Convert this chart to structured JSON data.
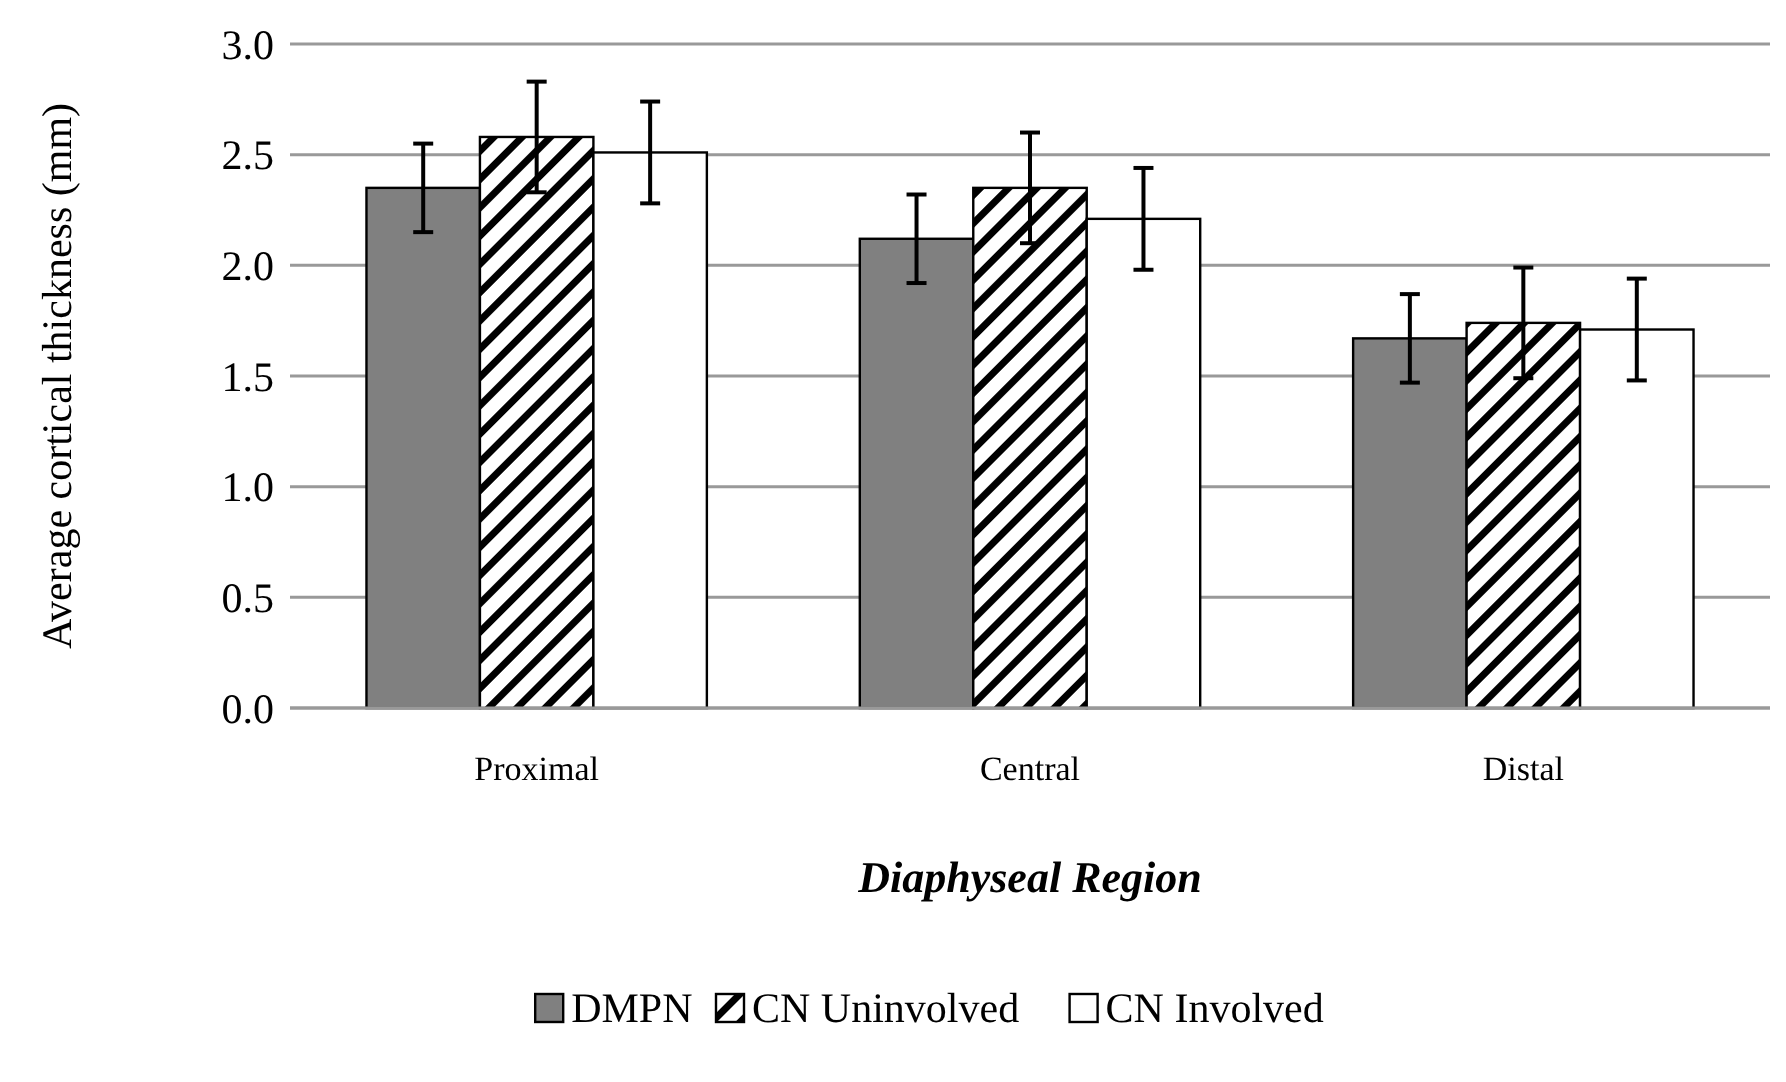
{
  "chart_data": {
    "type": "bar",
    "xlabel": "Diaphyseal Region",
    "ylabel": "Average cortical thickness (mm)",
    "categories": [
      "Proximal",
      "Central",
      "Distal"
    ],
    "series": [
      {
        "name": "DMPN",
        "color": "#808080",
        "values": [
          2.35,
          2.12,
          1.67
        ],
        "errors": [
          0.2,
          0.2,
          0.2
        ]
      },
      {
        "name": "CN Uninvolved",
        "color": "#000000",
        "values": [
          2.58,
          2.35,
          1.74
        ],
        "errors": [
          0.25,
          0.25,
          0.25
        ]
      },
      {
        "name": "CN Involved",
        "color": "#ffffff",
        "values": [
          2.51,
          2.21,
          1.71
        ],
        "errors": [
          0.23,
          0.23,
          0.23
        ]
      }
    ],
    "ylim": [
      0,
      3
    ],
    "yticks": [
      {
        "value": 0,
        "label": "0.0"
      },
      {
        "value": 0.5,
        "label": "0.5"
      },
      {
        "value": 1,
        "label": "1.0"
      },
      {
        "value": 1.5,
        "label": "1.5"
      },
      {
        "value": 2,
        "label": "2.0"
      },
      {
        "value": 2.5,
        "label": "2.5"
      },
      {
        "value": 3,
        "label": "3.0"
      }
    ],
    "grid": "y",
    "legend": "bottom"
  }
}
